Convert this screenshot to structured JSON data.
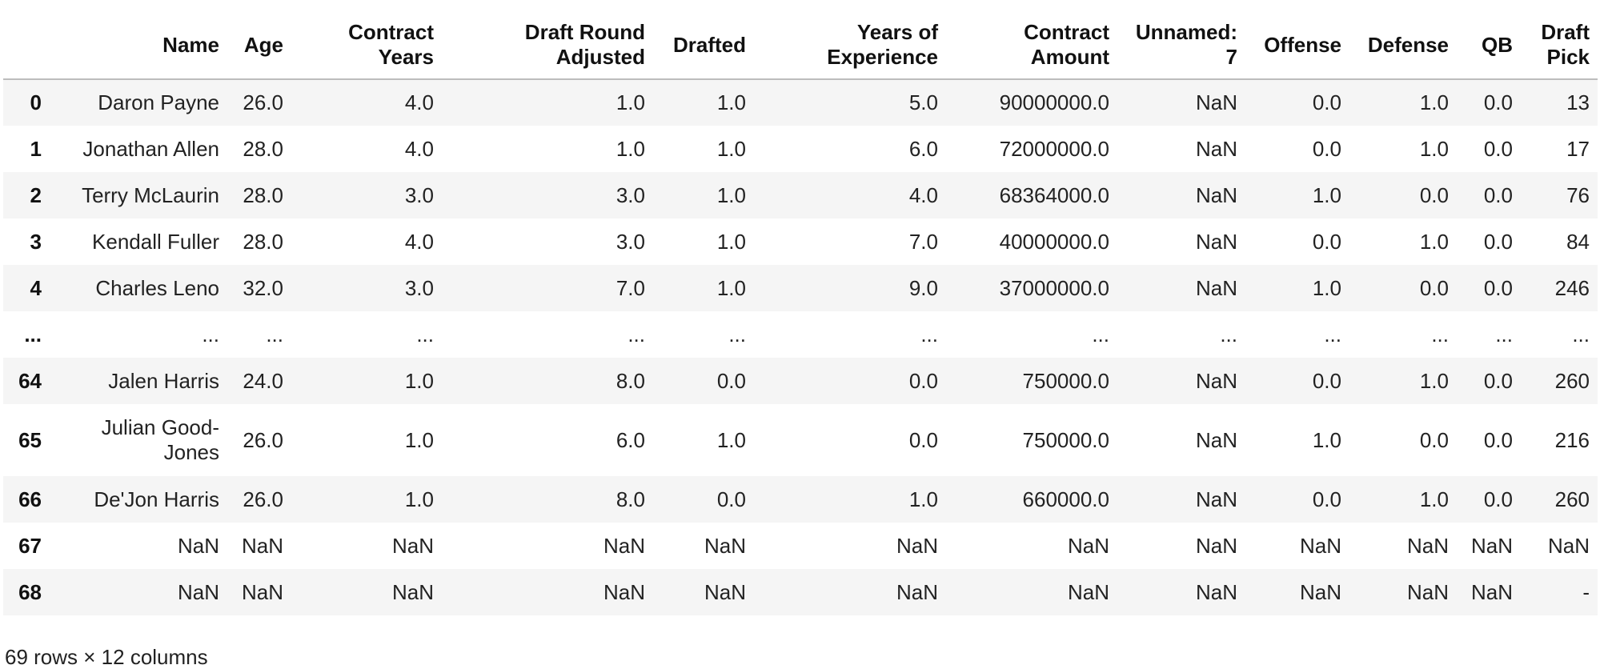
{
  "table": {
    "columns": [
      "Name",
      "Age",
      "Contract Years",
      "Draft Round Adjusted",
      "Drafted",
      "Years of Experience",
      "Contract Amount",
      "Unnamed: 7",
      "Offense",
      "Defense",
      "QB",
      "Draft Pick"
    ],
    "rows": [
      {
        "index": "0",
        "cells": [
          "Daron Payne",
          "26.0",
          "4.0",
          "1.0",
          "1.0",
          "5.0",
          "90000000.0",
          "NaN",
          "0.0",
          "1.0",
          "0.0",
          "13"
        ]
      },
      {
        "index": "1",
        "cells": [
          "Jonathan Allen",
          "28.0",
          "4.0",
          "1.0",
          "1.0",
          "6.0",
          "72000000.0",
          "NaN",
          "0.0",
          "1.0",
          "0.0",
          "17"
        ]
      },
      {
        "index": "2",
        "cells": [
          "Terry McLaurin",
          "28.0",
          "3.0",
          "3.0",
          "1.0",
          "4.0",
          "68364000.0",
          "NaN",
          "1.0",
          "0.0",
          "0.0",
          "76"
        ]
      },
      {
        "index": "3",
        "cells": [
          "Kendall Fuller",
          "28.0",
          "4.0",
          "3.0",
          "1.0",
          "7.0",
          "40000000.0",
          "NaN",
          "0.0",
          "1.0",
          "0.0",
          "84"
        ]
      },
      {
        "index": "4",
        "cells": [
          "Charles Leno",
          "32.0",
          "3.0",
          "7.0",
          "1.0",
          "9.0",
          "37000000.0",
          "NaN",
          "1.0",
          "0.0",
          "0.0",
          "246"
        ]
      },
      {
        "index": "...",
        "cells": [
          "...",
          "...",
          "...",
          "...",
          "...",
          "...",
          "...",
          "...",
          "...",
          "...",
          "...",
          "..."
        ]
      },
      {
        "index": "64",
        "cells": [
          "Jalen Harris",
          "24.0",
          "1.0",
          "8.0",
          "0.0",
          "0.0",
          "750000.0",
          "NaN",
          "0.0",
          "1.0",
          "0.0",
          "260"
        ]
      },
      {
        "index": "65",
        "cells": [
          "Julian Good-Jones",
          "26.0",
          "1.0",
          "6.0",
          "1.0",
          "0.0",
          "750000.0",
          "NaN",
          "1.0",
          "0.0",
          "0.0",
          "216"
        ]
      },
      {
        "index": "66",
        "cells": [
          "De'Jon Harris",
          "26.0",
          "1.0",
          "8.0",
          "0.0",
          "1.0",
          "660000.0",
          "NaN",
          "0.0",
          "1.0",
          "0.0",
          "260"
        ]
      },
      {
        "index": "67",
        "cells": [
          "NaN",
          "NaN",
          "NaN",
          "NaN",
          "NaN",
          "NaN",
          "NaN",
          "NaN",
          "NaN",
          "NaN",
          "NaN",
          "NaN"
        ]
      },
      {
        "index": "68",
        "cells": [
          "NaN",
          "NaN",
          "NaN",
          "NaN",
          "NaN",
          "NaN",
          "NaN",
          "NaN",
          "NaN",
          "NaN",
          "NaN",
          "-"
        ]
      }
    ]
  },
  "footer": {
    "shape_text": "69 rows × 12 columns"
  },
  "colors": {
    "stripe": "#f5f5f5",
    "header_rule": "#bdbdbd",
    "text": "#222222"
  }
}
